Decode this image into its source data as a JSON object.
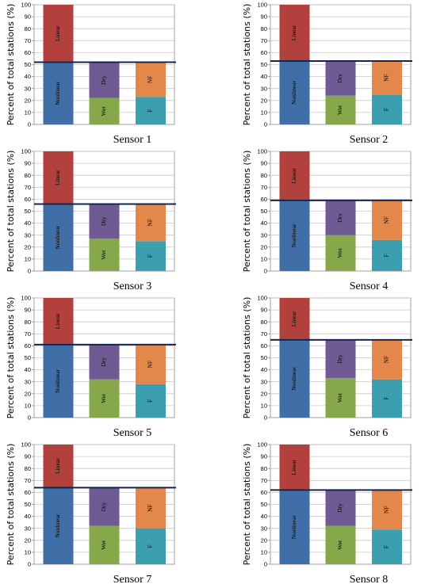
{
  "page": {
    "y_axis_label": "Percent of total stations (%)"
  },
  "colors": {
    "Nonlinear": "#3f6fa6",
    "Linear": "#b2403d",
    "Wet": "#86a84a",
    "Dry": "#6f5a93",
    "F": "#3c9fb0",
    "NF": "#e3874a",
    "threshold_line": "#15254d",
    "gridline": "#c8c8c8"
  },
  "chart_data": [
    {
      "type": "bar",
      "title": "Sensor 1",
      "ylabel": "Percent of total stations (%)",
      "ylim": [
        0,
        100
      ],
      "yticks": [
        0,
        10,
        20,
        30,
        40,
        50,
        60,
        70,
        80,
        90,
        100
      ],
      "grid": true,
      "bars": [
        {
          "segments": [
            {
              "label": "Nonlinear",
              "value": 52
            },
            {
              "label": "Linear",
              "value": 48
            }
          ]
        },
        {
          "segments": [
            {
              "label": "Wet",
              "value": 22
            },
            {
              "label": "Dry",
              "value": 30
            }
          ]
        },
        {
          "segments": [
            {
              "label": "F",
              "value": 23
            },
            {
              "label": "NF",
              "value": 29
            }
          ]
        }
      ],
      "threshold": 52
    },
    {
      "type": "bar",
      "title": "Sensor 2",
      "ylabel": "Percent of total stations (%)",
      "ylim": [
        0,
        100
      ],
      "yticks": [
        0,
        10,
        20,
        30,
        40,
        50,
        60,
        70,
        80,
        90,
        100
      ],
      "grid": true,
      "bars": [
        {
          "segments": [
            {
              "label": "Nonlinear",
              "value": 53
            },
            {
              "label": "Linear",
              "value": 47
            }
          ]
        },
        {
          "segments": [
            {
              "label": "Wet",
              "value": 24
            },
            {
              "label": "Dry",
              "value": 29
            }
          ]
        },
        {
          "segments": [
            {
              "label": "F",
              "value": 25
            },
            {
              "label": "NF",
              "value": 28
            }
          ]
        }
      ],
      "threshold": 53
    },
    {
      "type": "bar",
      "title": "Sensor 3",
      "ylabel": "Percent of total stations (%)",
      "ylim": [
        0,
        100
      ],
      "yticks": [
        0,
        10,
        20,
        30,
        40,
        50,
        60,
        70,
        80,
        90,
        100
      ],
      "grid": true,
      "bars": [
        {
          "segments": [
            {
              "label": "Nonlinear",
              "value": 56
            },
            {
              "label": "Linear",
              "value": 44
            }
          ]
        },
        {
          "segments": [
            {
              "label": "Wet",
              "value": 27
            },
            {
              "label": "Dry",
              "value": 29
            }
          ]
        },
        {
          "segments": [
            {
              "label": "F",
              "value": 25
            },
            {
              "label": "NF",
              "value": 31
            }
          ]
        }
      ],
      "threshold": 56
    },
    {
      "type": "bar",
      "title": "Sensor 4",
      "ylabel": "Percent of total stations (%)",
      "ylim": [
        0,
        100
      ],
      "yticks": [
        0,
        10,
        20,
        30,
        40,
        50,
        60,
        70,
        80,
        90,
        100
      ],
      "grid": true,
      "bars": [
        {
          "segments": [
            {
              "label": "Nonlinear",
              "value": 59
            },
            {
              "label": "Linear",
              "value": 41
            }
          ]
        },
        {
          "segments": [
            {
              "label": "Wet",
              "value": 30
            },
            {
              "label": "Dry",
              "value": 29
            }
          ]
        },
        {
          "segments": [
            {
              "label": "F",
              "value": 26
            },
            {
              "label": "NF",
              "value": 33
            }
          ]
        }
      ],
      "threshold": 59
    },
    {
      "type": "bar",
      "title": "Sensor 5",
      "ylabel": "Percent of total stations (%)",
      "ylim": [
        0,
        100
      ],
      "yticks": [
        0,
        10,
        20,
        30,
        40,
        50,
        60,
        70,
        80,
        90,
        100
      ],
      "grid": true,
      "bars": [
        {
          "segments": [
            {
              "label": "Nonlinear",
              "value": 61
            },
            {
              "label": "Linear",
              "value": 39
            }
          ]
        },
        {
          "segments": [
            {
              "label": "Wet",
              "value": 32
            },
            {
              "label": "Dry",
              "value": 29
            }
          ]
        },
        {
          "segments": [
            {
              "label": "F",
              "value": 28
            },
            {
              "label": "NF",
              "value": 33
            }
          ]
        }
      ],
      "threshold": 61
    },
    {
      "type": "bar",
      "title": "Sensor 6",
      "ylabel": "Percent of total stations (%)",
      "ylim": [
        0,
        100
      ],
      "yticks": [
        0,
        10,
        20,
        30,
        40,
        50,
        60,
        70,
        80,
        90,
        100
      ],
      "grid": true,
      "bars": [
        {
          "segments": [
            {
              "label": "Nonlinear",
              "value": 65
            },
            {
              "label": "Linear",
              "value": 35
            }
          ]
        },
        {
          "segments": [
            {
              "label": "Wet",
              "value": 33
            },
            {
              "label": "Dry",
              "value": 32
            }
          ]
        },
        {
          "segments": [
            {
              "label": "F",
              "value": 32
            },
            {
              "label": "NF",
              "value": 33
            }
          ]
        }
      ],
      "threshold": 65
    },
    {
      "type": "bar",
      "title": "Sensor 7",
      "ylabel": "Percent of total stations (%)",
      "ylim": [
        0,
        100
      ],
      "yticks": [
        0,
        10,
        20,
        30,
        40,
        50,
        60,
        70,
        80,
        90,
        100
      ],
      "grid": true,
      "bars": [
        {
          "segments": [
            {
              "label": "Nonlinear",
              "value": 64
            },
            {
              "label": "Linear",
              "value": 36
            }
          ]
        },
        {
          "segments": [
            {
              "label": "Wet",
              "value": 32
            },
            {
              "label": "Dry",
              "value": 32
            }
          ]
        },
        {
          "segments": [
            {
              "label": "F",
              "value": 30
            },
            {
              "label": "NF",
              "value": 34
            }
          ]
        }
      ],
      "threshold": 64
    },
    {
      "type": "bar",
      "title": "Sensor 8",
      "ylabel": "Percent of total stations (%)",
      "ylim": [
        0,
        100
      ],
      "yticks": [
        0,
        10,
        20,
        30,
        40,
        50,
        60,
        70,
        80,
        90,
        100
      ],
      "grid": true,
      "bars": [
        {
          "segments": [
            {
              "label": "Nonlinear",
              "value": 62
            },
            {
              "label": "Linear",
              "value": 38
            }
          ]
        },
        {
          "segments": [
            {
              "label": "Wet",
              "value": 32
            },
            {
              "label": "Dry",
              "value": 30
            }
          ]
        },
        {
          "segments": [
            {
              "label": "F",
              "value": 29
            },
            {
              "label": "NF",
              "value": 33
            }
          ]
        }
      ],
      "threshold": 62
    }
  ]
}
